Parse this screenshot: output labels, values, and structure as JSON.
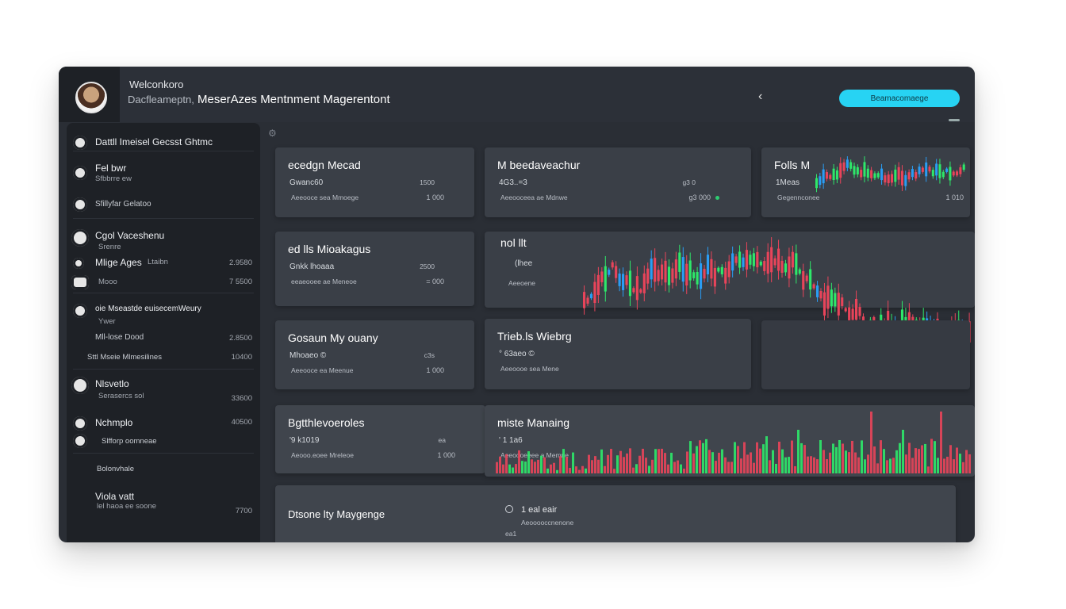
{
  "header": {
    "welcome": "Welconkoro",
    "subtitle_muted": "Dacfleameptn,",
    "subtitle_main": "MeserAzes Mentnment Magerentont",
    "back_icon": "chevron-left-icon",
    "cta_label": "Beamacomaege"
  },
  "sidebar": {
    "items": [
      {
        "title": "Dattll Imeisel Gecsst Ghtmc",
        "icon": "user-icon"
      },
      {
        "title": "Fel bwr",
        "sub": "Sfbbrre ew",
        "icon": "user-icon"
      },
      {
        "title": "Sfillyfar Gelatoo",
        "icon": "circle-icon"
      },
      {
        "title": "Cgol Vaceshenu",
        "sub": "Srenre",
        "icon": "avatar-icon"
      },
      {
        "title": "Mlige Ages",
        "sub": "Ltaibn",
        "value": "2.9580",
        "icon": "user-icon"
      },
      {
        "title": "Mooo",
        "value": "7 5500",
        "icon": "team-icon"
      },
      {
        "title": "oie Mseastde euisecemWeury",
        "sub": "Ywer",
        "icon": "user-icon"
      },
      {
        "title": "Mll-lose Dood",
        "value": "2.8500"
      },
      {
        "title": "Sttl Mseie Mlmesilines",
        "value": "10400"
      },
      {
        "title": "Nlsvetlo",
        "sub": "Serasercs sol",
        "value": "33600",
        "icon": "badge-icon"
      },
      {
        "title": "Nchmplo",
        "value": "40500",
        "icon": "user-icon"
      },
      {
        "title": "Slfforp oomneae",
        "icon": "team-icon"
      },
      {
        "title": "Bolonvhale"
      },
      {
        "title": "Viola vatt",
        "sub": "lel haoa ee soone",
        "value": "7700"
      }
    ]
  },
  "cards": {
    "c1": {
      "title": "ecedgn Mecad",
      "line1": "Gwanc60",
      "line2": "Aeeooce sea Mmoege",
      "r1": "1500",
      "r2": "1 000"
    },
    "c2": {
      "title": "M beedaveachur",
      "line1": "4G3..=3",
      "line2": "Aeeooceea ae Mdnwe",
      "r1": "g3 0",
      "r2": "g3 000"
    },
    "c3": {
      "title": "Folls M",
      "line1": "1Meas",
      "line2": "Gegennconee",
      "r2": "1 010"
    },
    "c4": {
      "title": "ed lls Mioakagus",
      "line1": "Gnkk lhoaaa",
      "line2": "eeaeooee ae Meneoe",
      "r1": "2500",
      "r2": "= 000"
    },
    "c5": {
      "title": "Gosaun My ouany",
      "line1": "Mhoaeo ©",
      "line2": "Aeeooce ea Meenue",
      "r1": "c3s",
      "r2": "1 000"
    },
    "c6": {
      "title": "Trieb.ls Wiebrg",
      "line1": "° 63aeo ©",
      "line2": "Aeeoooe sea Mene"
    },
    "c7": {
      "title": "Bgtthlevoeroles",
      "line1": "'9 k1019",
      "line2": "Aeooo.eoee Mreleoe",
      "r1": "ea",
      "r2": "1 000"
    },
    "c8": {
      "title": "miste Manaing",
      "line1": "' 1 1a6",
      "line2": "Aeeoooeeee a Memne"
    },
    "c9": {
      "title": "nol llt",
      "line1": "(lhee",
      "line2": "Aeeoene"
    },
    "c10": {
      "title": "Dtsone lty Maygenge",
      "radio_label": "1 eal eair",
      "radio_sub": "Aeooooccnenone",
      "foot": "ea1"
    }
  },
  "colors": {
    "accent": "#27d3f3",
    "up": "#2ee86a",
    "down": "#e8445a",
    "blue": "#2a9df4"
  }
}
